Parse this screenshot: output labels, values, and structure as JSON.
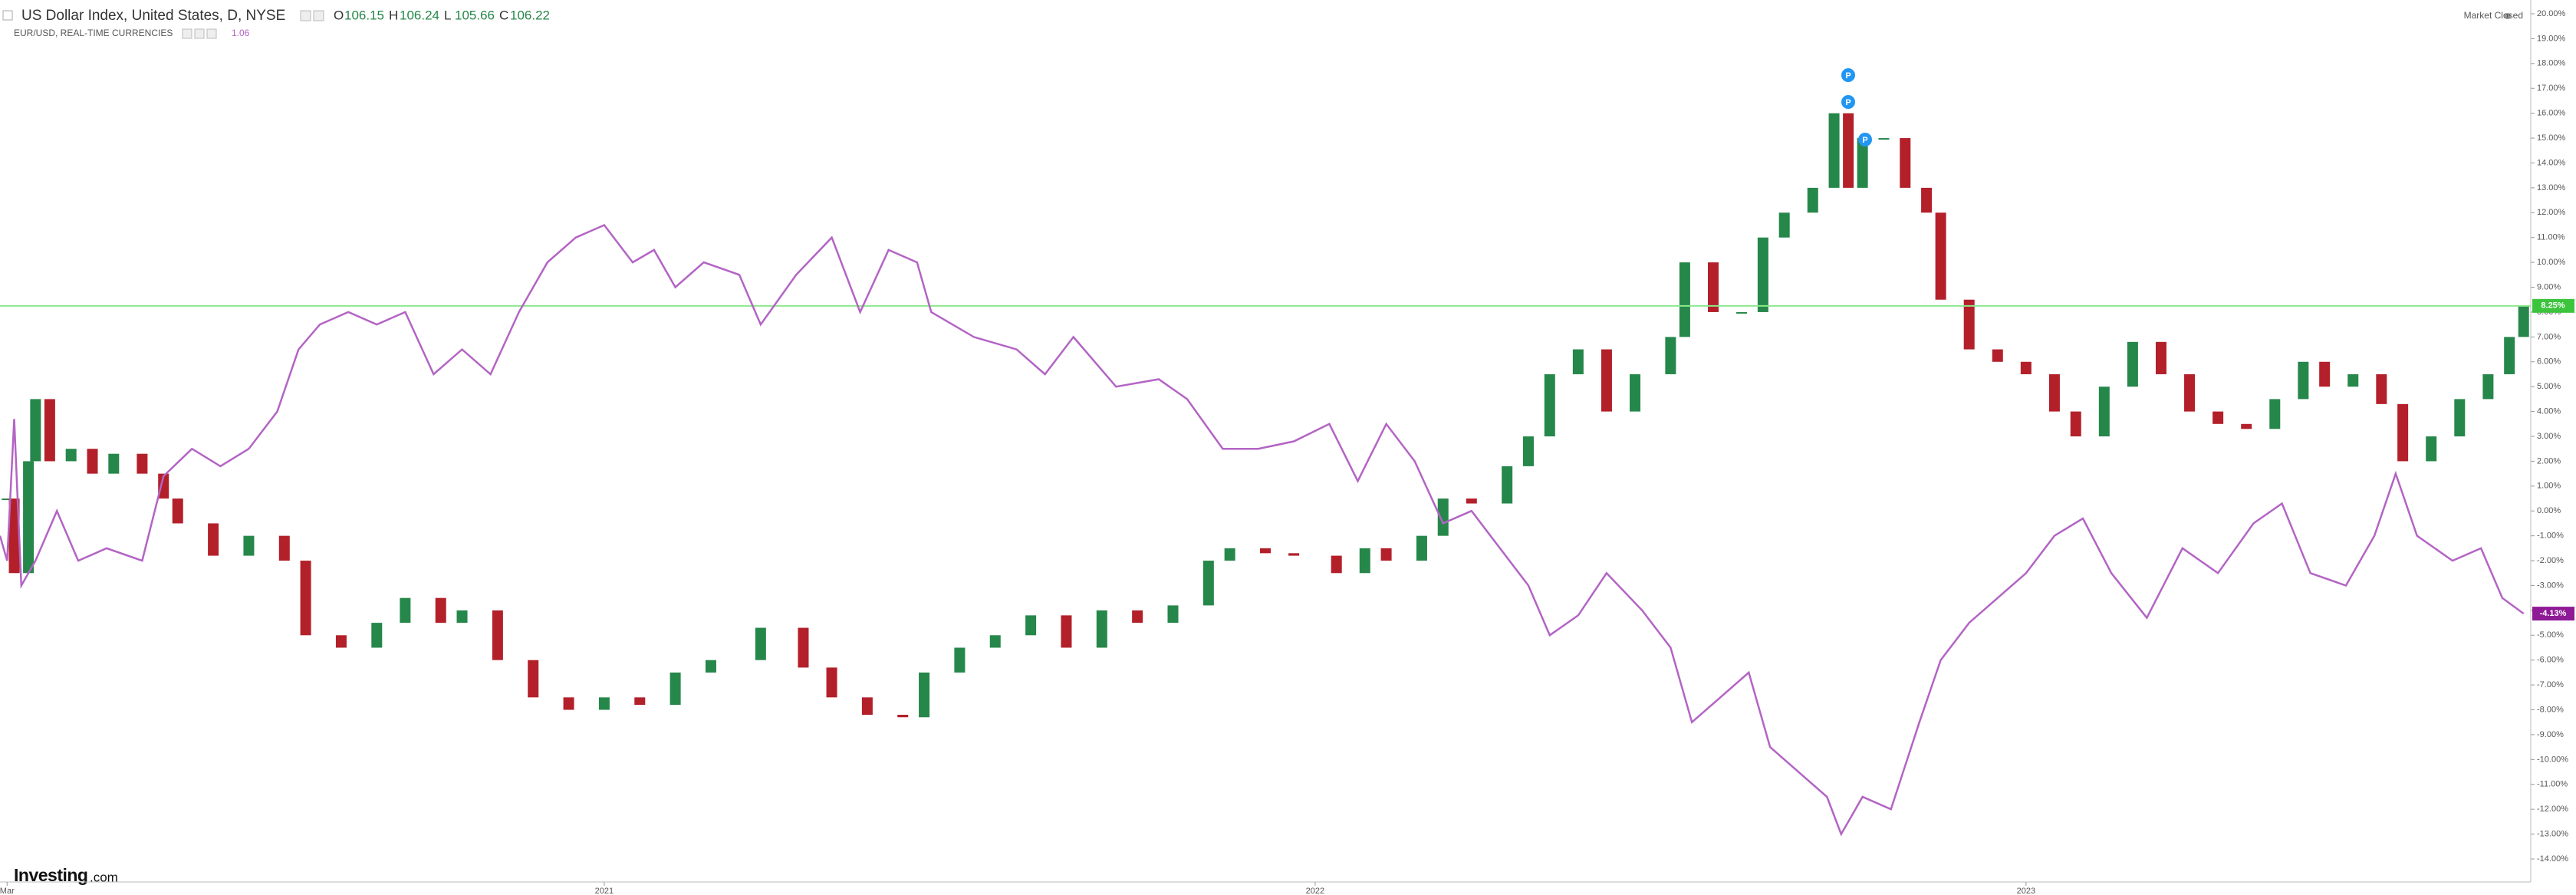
{
  "chart_data": {
    "type": "candlestick-line",
    "title": "US Dollar Index, United States, D, NYSE",
    "quote": [
      {
        "label": "O",
        "value": 106.15
      },
      {
        "label": "H",
        "value": 106.24
      },
      {
        "label": "L",
        "value": 105.66
      },
      {
        "label": "C",
        "value": 106.22
      }
    ],
    "status": "Market Closed",
    "logo": [
      "Investing",
      ".com"
    ],
    "annotations": [
      "P",
      "P",
      "P"
    ],
    "xlim": [
      2020.15,
      2023.71
    ],
    "xticks": [
      {
        "value": 2020.16,
        "label": "Mar"
      },
      2021,
      2022,
      2023
    ],
    "ylim": [
      -15,
      20.5
    ],
    "yticks": [
      {
        "value": 20,
        "label": "20.00%"
      },
      {
        "value": 19,
        "label": "19.00%"
      },
      {
        "value": 18,
        "label": "18.00%"
      },
      {
        "value": 17,
        "label": "17.00%"
      },
      {
        "value": 16,
        "label": "16.00%"
      },
      {
        "value": 15,
        "label": "15.00%"
      },
      {
        "value": 14,
        "label": "14.00%"
      },
      {
        "value": 13,
        "label": "13.00%"
      },
      {
        "value": 12,
        "label": "12.00%"
      },
      {
        "value": 11,
        "label": "11.00%"
      },
      {
        "value": 10,
        "label": "10.00%"
      },
      {
        "value": 9,
        "label": "9.00%"
      },
      {
        "value": 8,
        "label": "8.00%"
      },
      {
        "value": 7,
        "label": "7.00%"
      },
      {
        "value": 6,
        "label": "6.00%"
      },
      {
        "value": 5,
        "label": "5.00%"
      },
      {
        "value": 4,
        "label": "4.00%"
      },
      {
        "value": 3,
        "label": "3.00%"
      },
      {
        "value": 2,
        "label": "2.00%"
      },
      {
        "value": 1,
        "label": "1.00%"
      },
      {
        "value": 0,
        "label": "0.00%"
      },
      {
        "value": -1,
        "label": "-1.00%"
      },
      {
        "value": -2,
        "label": "-2.00%"
      },
      {
        "value": -3,
        "label": "-3.00%"
      },
      {
        "value": -4,
        "label": "-4.00%"
      },
      {
        "value": -5,
        "label": "-5.00%"
      },
      {
        "value": -6,
        "label": "-6.00%"
      },
      {
        "value": -7,
        "label": "-7.00%"
      },
      {
        "value": -8,
        "label": "-8.00%"
      },
      {
        "value": -9,
        "label": "-9.00%"
      },
      {
        "value": -10,
        "label": "-10.00%"
      },
      {
        "value": -11,
        "label": "-11.00%"
      },
      {
        "value": -12,
        "label": "-12.00%"
      },
      {
        "value": -13,
        "label": "-13.00%"
      },
      {
        "value": -14,
        "label": "-14.00%"
      }
    ],
    "series": [
      {
        "name": "US Dollar Index, United States, D, NYSE",
        "kind": "candle",
        "up_color": "#26874a",
        "down_color": "#b3202a",
        "price_line": {
          "value": 8.25,
          "label": "8.25%"
        },
        "price_line_color": "#8de88d",
        "tag_color": "#3cc43c",
        "x": [
          2020.16,
          2020.17,
          2020.19,
          2020.2,
          2020.22,
          2020.25,
          2020.28,
          2020.31,
          2020.35,
          2020.38,
          2020.4,
          2020.45,
          2020.5,
          2020.55,
          2020.58,
          2020.63,
          2020.68,
          2020.72,
          2020.77,
          2020.8,
          2020.85,
          2020.9,
          2020.95,
          2021,
          2021.05,
          2021.1,
          2021.15,
          2021.22,
          2021.28,
          2021.32,
          2021.37,
          2021.42,
          2021.45,
          2021.5,
          2021.55,
          2021.6,
          2021.65,
          2021.7,
          2021.75,
          2021.8,
          2021.85,
          2021.88,
          2021.93,
          2021.97,
          2022.03,
          2022.07,
          2022.1,
          2022.15,
          2022.18,
          2022.22,
          2022.27,
          2022.3,
          2022.33,
          2022.37,
          2022.41,
          2022.45,
          2022.5,
          2022.52,
          2022.56,
          2022.6,
          2022.63,
          2022.66,
          2022.7,
          2022.73,
          2022.75,
          2022.77,
          2022.8,
          2022.83,
          2022.86,
          2022.88,
          2022.92,
          2022.96,
          2023,
          2023.04,
          2023.07,
          2023.11,
          2023.15,
          2023.19,
          2023.23,
          2023.27,
          2023.31,
          2023.35,
          2023.39,
          2023.42,
          2023.46,
          2023.5,
          2023.53,
          2023.57,
          2023.61,
          2023.65,
          2023.68,
          2023.7
        ],
        "values": [
          0.5,
          -2.5,
          2,
          4.5,
          2,
          2.5,
          1.5,
          2.3,
          1.5,
          0.5,
          -0.5,
          -1.8,
          -1,
          -2,
          -5,
          -5.5,
          -4.5,
          -3.5,
          -4.5,
          -4,
          -6,
          -7.5,
          -8,
          -7.5,
          -7.8,
          -6.5,
          -6,
          -4.7,
          -6.3,
          -7.5,
          -8.2,
          -8.3,
          -6.5,
          -5.5,
          -5,
          -4.2,
          -5.5,
          -4,
          -4.5,
          -3.8,
          -2,
          -1.5,
          -1.7,
          -1.8,
          -2.5,
          -1.5,
          -2,
          -1,
          0.5,
          0.3,
          1.8,
          3,
          5.5,
          6.5,
          4,
          5.5,
          7,
          10,
          8,
          8,
          11,
          12,
          13,
          16,
          13,
          15,
          15,
          13,
          12,
          8.5,
          6.5,
          6,
          5.5,
          4,
          3,
          5,
          6.8,
          5.5,
          4,
          3.5,
          3.3,
          4.5,
          6,
          5,
          5.5,
          4.3,
          2,
          3,
          4.5,
          5.5,
          7,
          8.25
        ]
      },
      {
        "name": "EUR/USD, REAL-TIME CURRENCIES",
        "kind": "line",
        "color": "#b364c4",
        "last_value": 1.06,
        "price_line": {
          "value": -4.13,
          "label": "-4.13%"
        },
        "tag_color": "#8e1a96",
        "x": [
          2020.15,
          2020.16,
          2020.17,
          2020.18,
          2020.2,
          2020.23,
          2020.26,
          2020.3,
          2020.35,
          2020.38,
          2020.42,
          2020.46,
          2020.5,
          2020.54,
          2020.57,
          2020.6,
          2020.64,
          2020.68,
          2020.72,
          2020.76,
          2020.8,
          2020.84,
          2020.88,
          2020.92,
          2020.96,
          2021,
          2021.04,
          2021.07,
          2021.1,
          2021.14,
          2021.19,
          2021.22,
          2021.27,
          2021.32,
          2021.36,
          2021.4,
          2021.44,
          2021.46,
          2021.52,
          2021.58,
          2021.62,
          2021.66,
          2021.72,
          2021.78,
          2021.82,
          2021.87,
          2021.92,
          2021.97,
          2022.02,
          2022.06,
          2022.1,
          2022.14,
          2022.18,
          2022.22,
          2022.26,
          2022.3,
          2022.33,
          2022.37,
          2022.41,
          2022.46,
          2022.5,
          2022.53,
          2022.57,
          2022.61,
          2022.64,
          2022.68,
          2022.72,
          2022.74,
          2022.77,
          2022.81,
          2022.85,
          2022.88,
          2022.92,
          2022.96,
          2023,
          2023.04,
          2023.08,
          2023.12,
          2023.17,
          2023.22,
          2023.27,
          2023.32,
          2023.36,
          2023.4,
          2023.45,
          2023.49,
          2023.52,
          2023.55,
          2023.6,
          2023.64,
          2023.67,
          2023.7
        ],
        "values": [
          -1,
          -2,
          3.7,
          -3,
          -2,
          0,
          -2,
          -1.5,
          -2,
          1.4,
          2.5,
          1.8,
          2.5,
          4,
          6.5,
          7.5,
          8,
          7.5,
          8,
          5.5,
          6.5,
          5.5,
          8,
          10,
          11,
          11.5,
          10,
          10.5,
          9,
          10,
          9.5,
          7.5,
          9.5,
          11,
          8,
          10.5,
          10,
          8,
          7,
          6.5,
          5.5,
          7,
          5,
          5.3,
          4.5,
          2.5,
          2.5,
          2.8,
          3.5,
          1.2,
          3.5,
          2,
          -0.5,
          0,
          -1.5,
          -3,
          -5,
          -4.2,
          -2.5,
          -4,
          -5.5,
          -8.5,
          -7.5,
          -6.5,
          -9.5,
          -10.5,
          -11.5,
          -13,
          -11.5,
          -12,
          -8.5,
          -6,
          -4.5,
          -3.5,
          -2.5,
          -1,
          -0.3,
          -2.5,
          -4.3,
          -1.5,
          -2.5,
          -0.5,
          0.3,
          -2.5,
          -3,
          -1,
          1.5,
          -1,
          -2,
          -1.5,
          -3.5,
          -4.13
        ]
      }
    ]
  }
}
